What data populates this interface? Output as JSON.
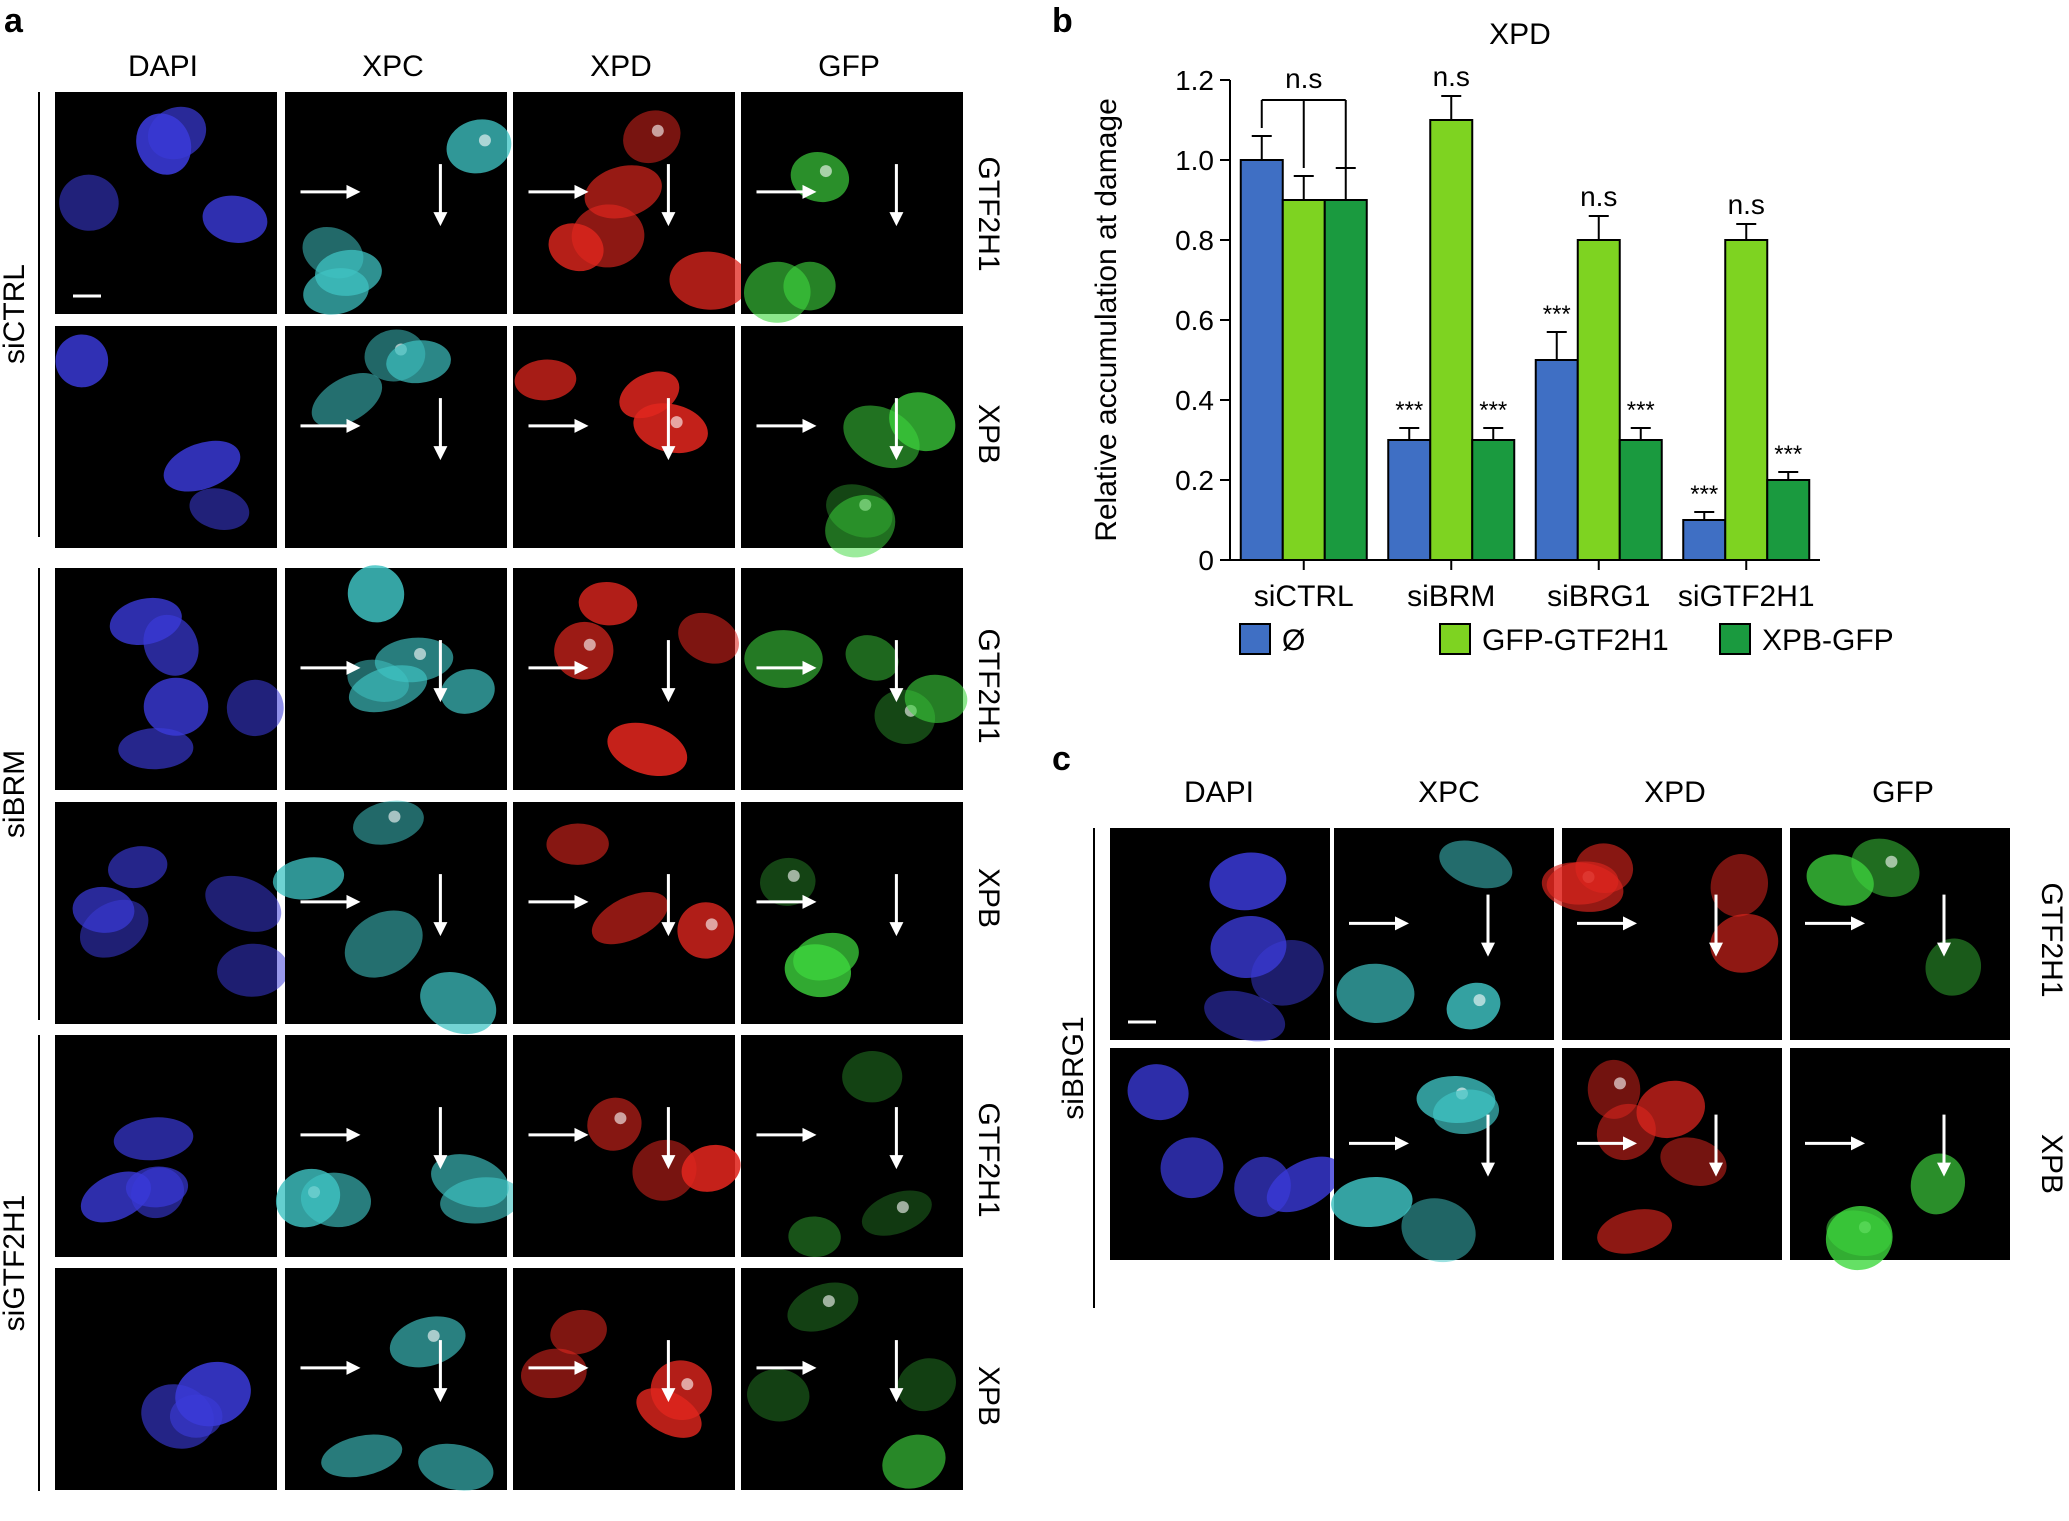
{
  "panel_a": {
    "letter": "a",
    "columns": [
      "DAPI",
      "XPC",
      "XPD",
      "GFP"
    ],
    "groups": [
      {
        "name": "siCTRL",
        "rows": [
          "GTF2H1",
          "XPB"
        ]
      },
      {
        "name": "siBRM",
        "rows": [
          "GTF2H1",
          "XPB"
        ]
      },
      {
        "name": "siGTF2H1",
        "rows": [
          "GTF2H1",
          "XPB"
        ]
      }
    ]
  },
  "panel_c": {
    "letter": "c",
    "columns": [
      "DAPI",
      "XPC",
      "XPD",
      "GFP"
    ],
    "group": "siBRG1",
    "rows": [
      "GTF2H1",
      "XPB"
    ]
  },
  "channel_colors": {
    "DAPI": "#3a3ad8",
    "XPC": "#3fc4c4",
    "XPD": "#e0261e",
    "GFP": "#3fd83f"
  },
  "panel_b": {
    "letter": "b",
    "chart_data": {
      "type": "bar",
      "title": "XPD",
      "ylabel": "Relative accumulation at damage",
      "xlabel": "",
      "categories": [
        "siCTRL",
        "siBRM",
        "siBRG1",
        "siGTF2H1"
      ],
      "ylim": [
        0,
        1.2
      ],
      "yticks": [
        "0",
        "0.2",
        "0.4",
        "0.6",
        "0.8",
        "1.0",
        "1.2"
      ],
      "series": [
        {
          "name": "Ø",
          "color": "#3f6fc4",
          "values": [
            1.0,
            0.3,
            0.5,
            0.1
          ],
          "errors": [
            0.06,
            0.03,
            0.07,
            0.02
          ],
          "labels": [
            "",
            "***",
            "***",
            "***"
          ]
        },
        {
          "name": "GFP-GTF2H1",
          "color": "#7ed321",
          "values": [
            0.9,
            1.1,
            0.8,
            0.8
          ],
          "errors": [
            0.06,
            0.06,
            0.06,
            0.04
          ],
          "labels": [
            "",
            "n.s",
            "n.s",
            "n.s"
          ]
        },
        {
          "name": "XPB-GFP",
          "color": "#1a9a3f",
          "values": [
            0.9,
            0.3,
            0.3,
            0.2
          ],
          "errors": [
            0.08,
            0.03,
            0.03,
            0.02
          ],
          "labels": [
            "",
            "***",
            "***",
            "***"
          ]
        }
      ],
      "bracket_label": "n.s",
      "legend_position": "bottom"
    }
  }
}
